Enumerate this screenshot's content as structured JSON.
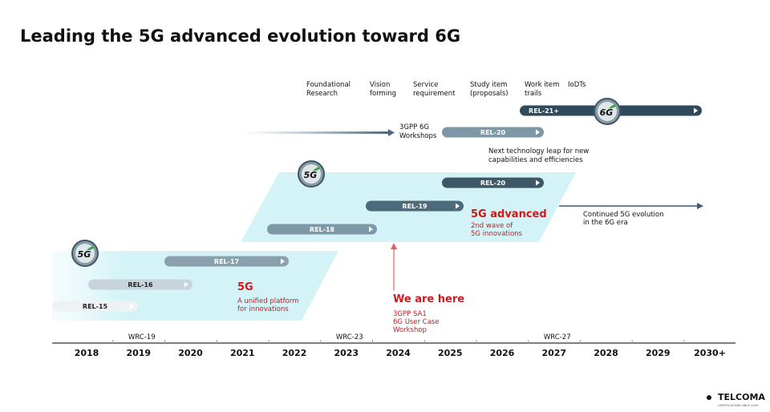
{
  "title": "Leading the 5G advanced evolution toward 6G",
  "phases": [
    [
      "Foundational",
      "Research"
    ],
    [
      "Vision",
      "forming"
    ],
    [
      "Service",
      "requirement"
    ],
    [
      "Study item",
      "(proposals)"
    ],
    [
      "Work item",
      "trails"
    ],
    [
      "IoDTs"
    ]
  ],
  "releases": [
    "REL-21+",
    "REL-20",
    "REL-20",
    "REL-19",
    "REL-18",
    "REL-17",
    "REL-16",
    "REL-15"
  ],
  "workshops": [
    "3GPP 6G",
    "Workshops"
  ],
  "next_leap": [
    "Next technology leap for new",
    "capabilities and efficiencies"
  ],
  "advanced": {
    "title": "5G advanced",
    "lines": [
      "2nd wave of",
      "5G innovations"
    ]
  },
  "continued": [
    "Continued 5G evolution",
    "in the 6G era"
  ],
  "fiveg": {
    "title": "5G",
    "lines": [
      "A unified platform",
      "for innovations"
    ]
  },
  "here": {
    "title": "We are here",
    "lines": [
      "3GPP SA1",
      "6G User Case",
      "Workshop"
    ]
  },
  "badges": [
    "5G",
    "5G",
    "6G"
  ],
  "wrc": [
    "WRC-19",
    "WRC-23",
    "WRC-27"
  ],
  "years": [
    "2018",
    "2019",
    "2020",
    "2021",
    "2022",
    "2023",
    "2024",
    "2025",
    "2026",
    "2027",
    "2028",
    "2029",
    "2030+"
  ],
  "logo": {
    "name": "TELCOMA",
    "tagline": "CERTIFICATIONS SINCE 2009"
  }
}
